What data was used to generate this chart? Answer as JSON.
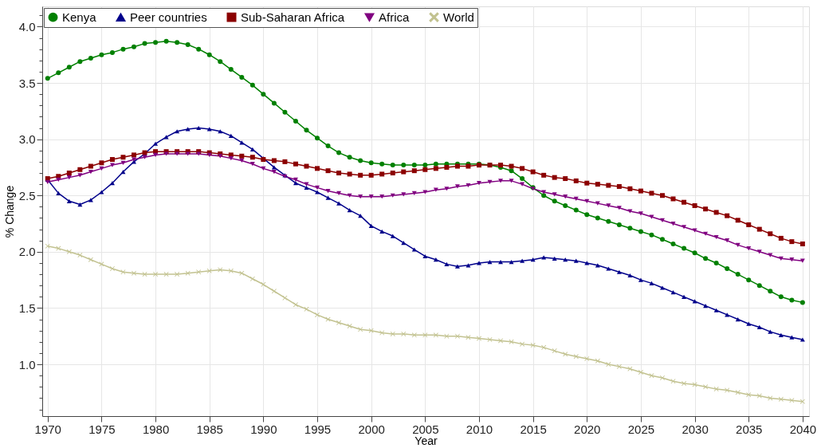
{
  "chart_data": {
    "type": "line",
    "xlabel": "Year",
    "ylabel": "% Change",
    "x": [
      1970,
      1971,
      1972,
      1973,
      1974,
      1975,
      1976,
      1977,
      1978,
      1979,
      1980,
      1981,
      1982,
      1983,
      1984,
      1985,
      1986,
      1987,
      1988,
      1989,
      1990,
      1991,
      1992,
      1993,
      1994,
      1995,
      1996,
      1997,
      1998,
      1999,
      2000,
      2001,
      2002,
      2003,
      2004,
      2005,
      2006,
      2007,
      2008,
      2009,
      2010,
      2011,
      2012,
      2013,
      2014,
      2015,
      2016,
      2017,
      2018,
      2019,
      2020,
      2021,
      2022,
      2023,
      2024,
      2025,
      2026,
      2027,
      2028,
      2029,
      2030,
      2031,
      2032,
      2033,
      2034,
      2035,
      2036,
      2037,
      2038,
      2039,
      2040
    ],
    "xlim": [
      1969.5,
      2040.6
    ],
    "xticks": [
      1970,
      1975,
      1980,
      1985,
      1990,
      1995,
      2000,
      2005,
      2010,
      2015,
      2020,
      2025,
      2030,
      2035,
      2040
    ],
    "ylim": [
      0.54,
      4.18
    ],
    "yticks": [
      {
        "value": 0.6,
        "label": null
      },
      {
        "value": 0.7,
        "label": null
      },
      {
        "value": 0.8,
        "label": null
      },
      {
        "value": 0.9,
        "label": null
      },
      {
        "value": 1.0,
        "label": "1.0"
      },
      {
        "value": 1.1,
        "label": null
      },
      {
        "value": 1.2,
        "label": null
      },
      {
        "value": 1.3,
        "label": null
      },
      {
        "value": 1.4,
        "label": null
      },
      {
        "value": 1.5,
        "label": "1.5"
      },
      {
        "value": 1.6,
        "label": null
      },
      {
        "value": 1.7,
        "label": null
      },
      {
        "value": 1.8,
        "label": null
      },
      {
        "value": 1.9,
        "label": null
      },
      {
        "value": 2.0,
        "label": "2.0"
      },
      {
        "value": 2.1,
        "label": null
      },
      {
        "value": 2.2,
        "label": null
      },
      {
        "value": 2.3,
        "label": null
      },
      {
        "value": 2.4,
        "label": null
      },
      {
        "value": 2.5,
        "label": "2.5"
      },
      {
        "value": 2.6,
        "label": null
      },
      {
        "value": 2.7,
        "label": null
      },
      {
        "value": 2.8,
        "label": null
      },
      {
        "value": 2.9,
        "label": null
      },
      {
        "value": 3.0,
        "label": "3.0"
      },
      {
        "value": 3.1,
        "label": null
      },
      {
        "value": 3.2,
        "label": null
      },
      {
        "value": 3.3,
        "label": null
      },
      {
        "value": 3.4,
        "label": null
      },
      {
        "value": 3.5,
        "label": "3.5"
      },
      {
        "value": 3.6,
        "label": null
      },
      {
        "value": 3.7,
        "label": null
      },
      {
        "value": 3.8,
        "label": null
      },
      {
        "value": 3.9,
        "label": null
      },
      {
        "value": 4.0,
        "label": "4.0"
      },
      {
        "value": 4.1,
        "label": null
      }
    ],
    "grid": true,
    "legend": "top left",
    "line_style": "solid",
    "series": [
      {
        "name": "Kenya",
        "color": "#008000",
        "marker": "circle",
        "values": [
          3.54,
          3.59,
          3.64,
          3.69,
          3.72,
          3.75,
          3.77,
          3.8,
          3.82,
          3.85,
          3.86,
          3.87,
          3.86,
          3.84,
          3.8,
          3.75,
          3.69,
          3.62,
          3.55,
          3.48,
          3.4,
          3.32,
          3.24,
          3.16,
          3.08,
          3.01,
          2.94,
          2.88,
          2.84,
          2.81,
          2.79,
          2.78,
          2.77,
          2.77,
          2.77,
          2.77,
          2.78,
          2.78,
          2.78,
          2.78,
          2.78,
          2.77,
          2.75,
          2.72,
          2.65,
          2.57,
          2.5,
          2.45,
          2.41,
          2.37,
          2.33,
          2.3,
          2.27,
          2.24,
          2.21,
          2.18,
          2.15,
          2.11,
          2.07,
          2.03,
          1.99,
          1.94,
          1.9,
          1.85,
          1.8,
          1.75,
          1.7,
          1.65,
          1.6,
          1.57,
          1.55
        ]
      },
      {
        "name": "Peer countries",
        "color": "#00008b",
        "marker": "triangle",
        "values": [
          2.64,
          2.52,
          2.45,
          2.42,
          2.46,
          2.53,
          2.61,
          2.71,
          2.8,
          2.87,
          2.96,
          3.02,
          3.07,
          3.09,
          3.1,
          3.09,
          3.07,
          3.03,
          2.97,
          2.91,
          2.83,
          2.75,
          2.68,
          2.61,
          2.57,
          2.53,
          2.48,
          2.43,
          2.37,
          2.32,
          2.23,
          2.18,
          2.14,
          2.08,
          2.02,
          1.96,
          1.93,
          1.89,
          1.87,
          1.88,
          1.9,
          1.91,
          1.91,
          1.91,
          1.92,
          1.93,
          1.95,
          1.94,
          1.93,
          1.92,
          1.9,
          1.88,
          1.85,
          1.82,
          1.79,
          1.75,
          1.72,
          1.68,
          1.64,
          1.6,
          1.56,
          1.52,
          1.48,
          1.44,
          1.4,
          1.36,
          1.33,
          1.29,
          1.26,
          1.24,
          1.22
        ]
      },
      {
        "name": "Sub-Saharan Africa",
        "color": "#8b0000",
        "marker": "square",
        "values": [
          2.65,
          2.67,
          2.7,
          2.73,
          2.76,
          2.79,
          2.82,
          2.84,
          2.86,
          2.88,
          2.89,
          2.89,
          2.89,
          2.89,
          2.89,
          2.88,
          2.87,
          2.86,
          2.85,
          2.84,
          2.82,
          2.81,
          2.8,
          2.78,
          2.76,
          2.74,
          2.72,
          2.7,
          2.69,
          2.68,
          2.68,
          2.69,
          2.7,
          2.71,
          2.72,
          2.73,
          2.74,
          2.75,
          2.76,
          2.76,
          2.77,
          2.77,
          2.77,
          2.76,
          2.74,
          2.71,
          2.68,
          2.66,
          2.65,
          2.63,
          2.61,
          2.6,
          2.59,
          2.58,
          2.56,
          2.54,
          2.52,
          2.5,
          2.47,
          2.44,
          2.41,
          2.38,
          2.35,
          2.32,
          2.28,
          2.24,
          2.2,
          2.16,
          2.12,
          2.09,
          2.07
        ]
      },
      {
        "name": "Africa",
        "color": "#800080",
        "marker": "triangle-down",
        "values": [
          2.62,
          2.64,
          2.66,
          2.68,
          2.71,
          2.74,
          2.77,
          2.79,
          2.82,
          2.84,
          2.86,
          2.87,
          2.87,
          2.87,
          2.87,
          2.86,
          2.85,
          2.83,
          2.81,
          2.78,
          2.74,
          2.71,
          2.67,
          2.64,
          2.6,
          2.57,
          2.54,
          2.52,
          2.5,
          2.49,
          2.49,
          2.49,
          2.5,
          2.51,
          2.52,
          2.53,
          2.55,
          2.56,
          2.58,
          2.59,
          2.61,
          2.62,
          2.63,
          2.63,
          2.6,
          2.56,
          2.53,
          2.51,
          2.49,
          2.47,
          2.45,
          2.43,
          2.41,
          2.39,
          2.36,
          2.34,
          2.31,
          2.28,
          2.25,
          2.22,
          2.19,
          2.16,
          2.13,
          2.1,
          2.06,
          2.03,
          2.0,
          1.97,
          1.94,
          1.93,
          1.92
        ]
      },
      {
        "name": "World",
        "color": "#c2c290",
        "marker": "cross",
        "values": [
          2.05,
          2.03,
          2.0,
          1.97,
          1.93,
          1.89,
          1.85,
          1.82,
          1.81,
          1.8,
          1.8,
          1.8,
          1.8,
          1.81,
          1.82,
          1.83,
          1.84,
          1.83,
          1.81,
          1.76,
          1.71,
          1.65,
          1.59,
          1.53,
          1.49,
          1.44,
          1.4,
          1.37,
          1.34,
          1.31,
          1.3,
          1.28,
          1.27,
          1.27,
          1.26,
          1.26,
          1.26,
          1.25,
          1.25,
          1.24,
          1.23,
          1.22,
          1.21,
          1.2,
          1.18,
          1.17,
          1.15,
          1.12,
          1.09,
          1.07,
          1.05,
          1.03,
          1.0,
          0.98,
          0.96,
          0.93,
          0.9,
          0.88,
          0.85,
          0.83,
          0.82,
          0.8,
          0.78,
          0.77,
          0.75,
          0.73,
          0.72,
          0.7,
          0.69,
          0.68,
          0.67
        ]
      }
    ]
  }
}
